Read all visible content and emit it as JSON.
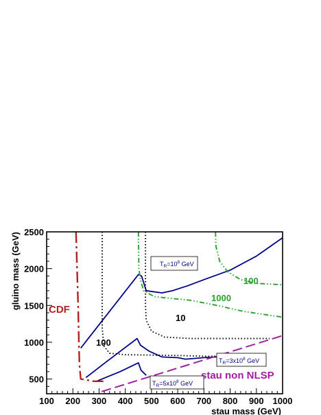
{
  "chart_data": {
    "type": "line",
    "xlabel": "stau mass (GeV)",
    "ylabel": "gluino mass (GeV)",
    "xlim": [
      100,
      1000
    ],
    "ylim": [
      300,
      2500
    ],
    "xticks": [
      "100",
      "200",
      "300",
      "400",
      "500",
      "600",
      "700",
      "800",
      "900",
      "1000"
    ],
    "yticks": [
      "500",
      "1000",
      "1500",
      "2000",
      "2500"
    ],
    "grid": false,
    "series": [
      {
        "kind": "reheat",
        "color": "#00008b",
        "dash": "solid",
        "points": [
          [
            230,
            920
          ],
          [
            450,
            1920
          ],
          [
            462,
            1900
          ],
          [
            480,
            1700
          ],
          [
            540,
            1670
          ],
          [
            580,
            1700
          ],
          [
            640,
            1770
          ],
          [
            700,
            1850
          ],
          [
            800,
            1980
          ],
          [
            900,
            2170
          ],
          [
            1000,
            2420
          ]
        ]
      },
      {
        "kind": "reheat",
        "color": "#00008b",
        "dash": "solid",
        "points": [
          [
            250,
            520
          ],
          [
            330,
            740
          ],
          [
            445,
            1050
          ],
          [
            458,
            960
          ],
          [
            490,
            880
          ],
          [
            540,
            800
          ],
          [
            600,
            790
          ],
          [
            630,
            770
          ],
          [
            700,
            790
          ],
          [
            800,
            810
          ]
        ]
      },
      {
        "kind": "reheat",
        "color": "#00008b",
        "dash": "solid",
        "points": [
          [
            290,
            470
          ],
          [
            380,
            600
          ],
          [
            450,
            720
          ],
          [
            460,
            620
          ],
          [
            480,
            550
          ]
        ]
      },
      {
        "kind": "cdf",
        "color": "#b22222",
        "dash": "longdashdot",
        "points": [
          [
            212,
            2500
          ],
          [
            220,
            1500
          ],
          [
            223,
            1000
          ],
          [
            225,
            700
          ],
          [
            230,
            500
          ],
          [
            280,
            470
          ],
          [
            330,
            470
          ]
        ]
      },
      {
        "kind": "nlsp",
        "color": "#a020a0",
        "dash": "longdash",
        "points": [
          [
            310,
            330
          ],
          [
            1000,
            1090
          ]
        ]
      },
      {
        "kind": "contour",
        "name": "100",
        "color": "#000000",
        "dash": "dot",
        "points": [
          [
            312,
            2500
          ],
          [
            312,
            1200
          ],
          [
            318,
            950
          ],
          [
            340,
            850
          ],
          [
            400,
            830
          ],
          [
            500,
            825
          ],
          [
            600,
            820
          ],
          [
            700,
            810
          ],
          [
            800,
            810
          ]
        ]
      },
      {
        "kind": "contour",
        "name": "10",
        "color": "#000000",
        "dash": "dot",
        "points": [
          [
            477,
            2500
          ],
          [
            477,
            1500
          ],
          [
            480,
            1300
          ],
          [
            500,
            1150
          ],
          [
            550,
            1070
          ],
          [
            650,
            1050
          ],
          [
            800,
            1050
          ],
          [
            950,
            1050
          ]
        ]
      },
      {
        "kind": "contour",
        "name": "1000",
        "color": "#2ca02c",
        "dash": "dashdotdot",
        "points": [
          [
            450,
            2500
          ],
          [
            452,
            2000
          ],
          [
            458,
            1850
          ],
          [
            470,
            1700
          ],
          [
            510,
            1620
          ],
          [
            560,
            1600
          ],
          [
            650,
            1570
          ],
          [
            750,
            1500
          ],
          [
            850,
            1420
          ],
          [
            1000,
            1340
          ]
        ]
      },
      {
        "kind": "contour",
        "name": "100",
        "color": "#2ca02c",
        "dash": "dashdotdot",
        "points": [
          [
            744,
            2500
          ],
          [
            746,
            2300
          ],
          [
            760,
            2100
          ],
          [
            790,
            1960
          ],
          [
            840,
            1850
          ],
          [
            900,
            1800
          ],
          [
            1000,
            1780
          ]
        ]
      }
    ],
    "annotations": {
      "cdf": "CDF",
      "nlsp": "stau non NLSP",
      "black_100": "100",
      "black_10": "10",
      "green_1000": "1000",
      "green_100": "100",
      "box_top_main": "T",
      "box_top_sub": "R",
      "box_top_tail": "=10",
      "box_top_exp": "8",
      "box_top_unit": " GeV",
      "box_mid_main": "T",
      "box_mid_sub": "R",
      "box_mid_tail": "=3x10",
      "box_mid_exp": "8",
      "box_mid_unit": " GeV",
      "box_bot_main": "T",
      "box_bot_sub": "R",
      "box_bot_tail": "=5x10",
      "box_bot_exp": "8",
      "box_bot_unit": " GeV"
    }
  }
}
